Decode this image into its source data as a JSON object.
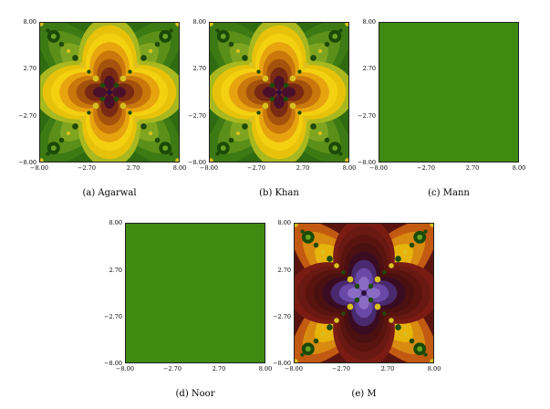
{
  "figure": {
    "ticks": [
      "8.00",
      "2.70",
      "−2.70",
      "−8.00"
    ],
    "xticks": [
      "−8.00",
      "−2.70",
      "2.70",
      "8.00"
    ],
    "panels": [
      {
        "id": "a",
        "caption": "(a)  Agarwal",
        "style": "yellow"
      },
      {
        "id": "b",
        "caption": "(b)  Khan",
        "style": "yellow"
      },
      {
        "id": "c",
        "caption": "(c)  Mann",
        "style": "solid",
        "fill": "#3f8a10"
      },
      {
        "id": "d",
        "caption": "(d)  Noor",
        "style": "solid",
        "fill": "#3f8a10"
      },
      {
        "id": "e",
        "caption": "(e)  M",
        "style": "red"
      }
    ]
  }
}
